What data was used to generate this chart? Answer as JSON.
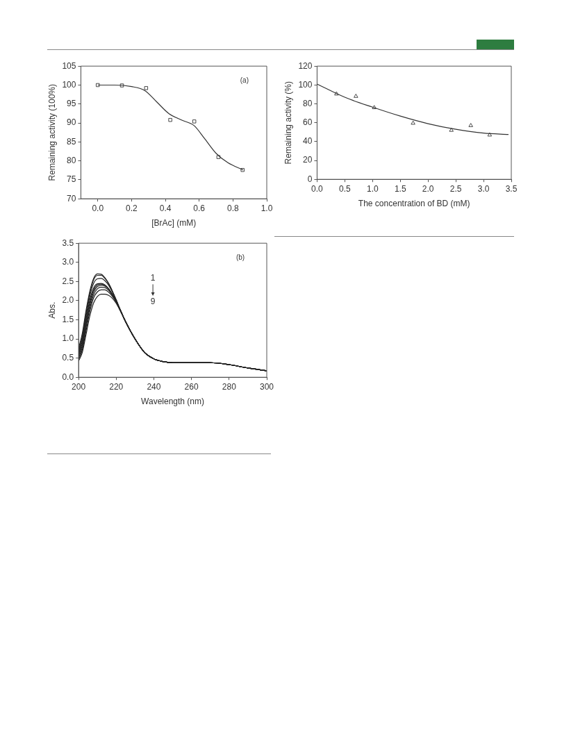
{
  "chart_data": [
    {
      "type": "scatter",
      "xlabel": "[BrAc] (mM)",
      "ylabel": "Remaining activity (100%)",
      "annotations": [
        "(a)"
      ],
      "xlim": [
        -0.1,
        1.0
      ],
      "xticks": [
        {
          "value": 0,
          "label": "0.0"
        },
        {
          "value": 0.2,
          "label": "0.2"
        },
        {
          "value": 0.4,
          "label": "0.4"
        },
        {
          "value": 0.6,
          "label": "0.6"
        },
        {
          "value": 0.8,
          "label": "0.8"
        },
        {
          "value": 1,
          "label": "1.0"
        }
      ],
      "ylim": [
        70,
        105
      ],
      "yticks": [
        70,
        75,
        80,
        85,
        90,
        95,
        100,
        105
      ],
      "grid": false,
      "legend": false,
      "series": [
        {
          "type": "scatter",
          "marker": "square",
          "color": "#333333",
          "x": [
            0,
            0.143,
            0.286,
            0.429,
            0.571,
            0.714,
            0.857
          ],
          "values": [
            100,
            99.9,
            99.2,
            90.8,
            90.4,
            81,
            77.6
          ]
        },
        {
          "type": "line",
          "marker": "none",
          "line_style": "solid",
          "color": "#333333",
          "x": [
            0,
            0.1,
            0.2,
            0.28,
            0.35,
            0.42,
            0.5,
            0.57,
            0.63,
            0.7,
            0.77,
            0.86
          ],
          "values": [
            100,
            100,
            99.6,
            98.5,
            95.5,
            92.5,
            90.7,
            89.3,
            86,
            82,
            79.5,
            77.6
          ]
        }
      ]
    },
    {
      "type": "scatter",
      "xlabel": "The concentration of BD (mM)",
      "ylabel": "Remaining activity (%)",
      "xlim": [
        0,
        3.5
      ],
      "xticks": [
        {
          "value": 0,
          "label": "0.0"
        },
        {
          "value": 0.5,
          "label": "0.5"
        },
        {
          "value": 1,
          "label": "1.0"
        },
        {
          "value": 1.5,
          "label": "1.5"
        },
        {
          "value": 2,
          "label": "2.0"
        },
        {
          "value": 2.5,
          "label": "2.5"
        },
        {
          "value": 3,
          "label": "3.0"
        },
        {
          "value": 3.5,
          "label": "3.5"
        }
      ],
      "ylim": [
        0,
        120
      ],
      "yticks": [
        0,
        20,
        40,
        60,
        80,
        100,
        120
      ],
      "grid": false,
      "legend": false,
      "series": [
        {
          "type": "scatter",
          "marker": "triangle",
          "color": "#333333",
          "x": [
            0.35,
            0.7,
            1.03,
            1.73,
            2.42,
            2.77,
            3.11
          ],
          "values": [
            90.5,
            88,
            76,
            59.5,
            52,
            57,
            47
          ]
        },
        {
          "type": "line",
          "marker": "none",
          "line_style": "solid",
          "color": "#333333",
          "x": [
            0,
            0.5,
            1,
            1.5,
            2,
            2.5,
            3,
            3.45
          ],
          "values": [
            101,
            87,
            76.5,
            67,
            59,
            53,
            49,
            47.5
          ]
        }
      ]
    },
    {
      "type": "line",
      "xlabel": "Wavelength (nm)",
      "ylabel": "Abs.",
      "annotations": [
        "(b)",
        "1",
        "9"
      ],
      "xlim": [
        200,
        300
      ],
      "xticks": [
        200,
        220,
        240,
        260,
        280,
        300
      ],
      "ylim": [
        0,
        3.5
      ],
      "yticks": [
        {
          "value": 0,
          "label": "0.0"
        },
        {
          "value": 0.5,
          "label": "0.5"
        },
        {
          "value": 1,
          "label": "1.0"
        },
        {
          "value": 1.5,
          "label": "1.5"
        },
        {
          "value": 2,
          "label": "2.0"
        },
        {
          "value": 2.5,
          "label": "2.5"
        },
        {
          "value": 3,
          "label": "3.0"
        },
        {
          "value": 3.5,
          "label": "3.5"
        }
      ],
      "grid": false,
      "legend": false,
      "marker": "none",
      "line_style": "solid",
      "x": [
        200,
        202,
        204,
        206,
        208,
        210,
        212,
        214,
        216,
        218,
        220,
        222,
        225,
        230,
        235,
        240,
        245,
        250,
        260,
        270,
        280,
        290,
        300
      ],
      "series": [
        {
          "color": "#222222",
          "values": [
            0.75,
            1.15,
            1.75,
            2.25,
            2.58,
            2.7,
            2.69,
            2.6,
            2.45,
            2.25,
            2.02,
            1.78,
            1.45,
            1.0,
            0.65,
            0.48,
            0.41,
            0.38,
            0.38,
            0.38,
            0.33,
            0.24,
            0.17
          ]
        },
        {
          "color": "#222222",
          "values": [
            0.7,
            1.08,
            1.68,
            2.2,
            2.54,
            2.66,
            2.66,
            2.58,
            2.44,
            2.24,
            2.02,
            1.78,
            1.45,
            1.0,
            0.65,
            0.48,
            0.41,
            0.38,
            0.38,
            0.38,
            0.33,
            0.24,
            0.17
          ]
        },
        {
          "color": "#222222",
          "values": [
            0.66,
            1.02,
            1.6,
            2.12,
            2.45,
            2.57,
            2.58,
            2.52,
            2.4,
            2.22,
            2.01,
            1.78,
            1.45,
            1.0,
            0.65,
            0.48,
            0.41,
            0.38,
            0.38,
            0.38,
            0.33,
            0.24,
            0.17
          ]
        },
        {
          "color": "#222222",
          "values": [
            0.62,
            0.96,
            1.52,
            2.02,
            2.33,
            2.44,
            2.45,
            2.41,
            2.31,
            2.16,
            1.98,
            1.77,
            1.45,
            1.0,
            0.65,
            0.48,
            0.41,
            0.38,
            0.38,
            0.38,
            0.33,
            0.24,
            0.17
          ]
        },
        {
          "color": "#222222",
          "values": [
            0.58,
            0.9,
            1.45,
            1.95,
            2.28,
            2.41,
            2.43,
            2.4,
            2.31,
            2.16,
            1.98,
            1.77,
            1.45,
            1.0,
            0.65,
            0.48,
            0.41,
            0.38,
            0.38,
            0.38,
            0.33,
            0.24,
            0.17
          ]
        },
        {
          "color": "#222222",
          "values": [
            0.54,
            0.84,
            1.38,
            1.88,
            2.22,
            2.37,
            2.4,
            2.38,
            2.3,
            2.16,
            1.98,
            1.77,
            1.45,
            1.0,
            0.65,
            0.48,
            0.41,
            0.38,
            0.38,
            0.38,
            0.33,
            0.24,
            0.17
          ]
        },
        {
          "color": "#222222",
          "values": [
            0.5,
            0.78,
            1.3,
            1.8,
            2.15,
            2.31,
            2.35,
            2.34,
            2.27,
            2.14,
            1.97,
            1.77,
            1.45,
            1.0,
            0.65,
            0.48,
            0.41,
            0.38,
            0.38,
            0.38,
            0.33,
            0.24,
            0.17
          ]
        },
        {
          "color": "#222222",
          "values": [
            0.46,
            0.72,
            1.22,
            1.72,
            2.07,
            2.23,
            2.28,
            2.28,
            2.22,
            2.11,
            1.96,
            1.76,
            1.45,
            1.0,
            0.65,
            0.48,
            0.41,
            0.38,
            0.38,
            0.38,
            0.33,
            0.24,
            0.17
          ]
        },
        {
          "color": "#222222",
          "values": [
            0.42,
            0.65,
            1.12,
            1.6,
            1.94,
            2.11,
            2.17,
            2.17,
            2.14,
            2.06,
            1.93,
            1.75,
            1.45,
            1.0,
            0.65,
            0.48,
            0.41,
            0.38,
            0.38,
            0.38,
            0.33,
            0.24,
            0.17
          ]
        }
      ]
    }
  ]
}
